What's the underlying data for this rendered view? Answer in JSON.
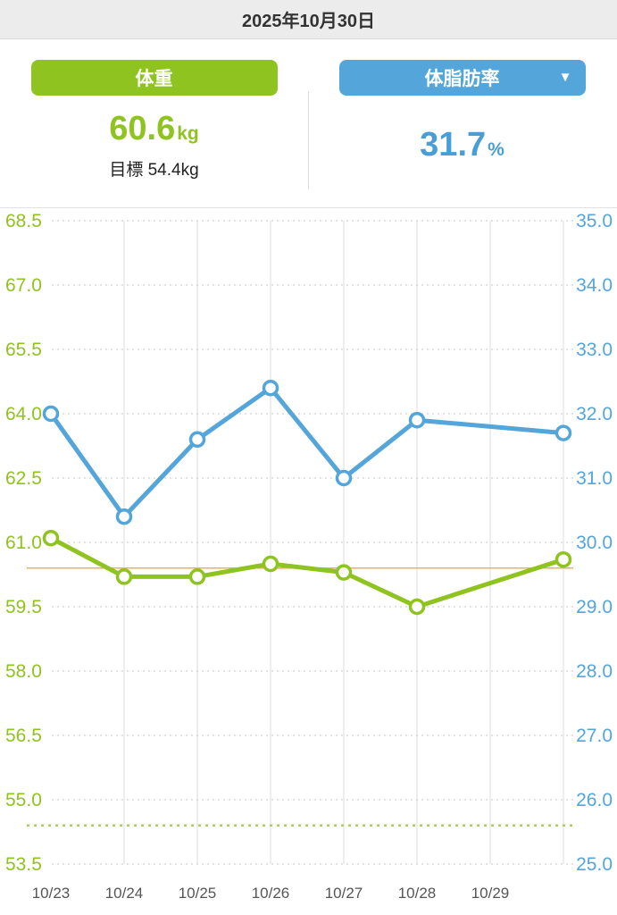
{
  "header": {
    "date": "2025年10月30日"
  },
  "metrics": {
    "weight": {
      "label": "体重",
      "value": "60.6",
      "unit": "kg",
      "goal_label": "目標 54.4kg"
    },
    "body_fat": {
      "label": "体脂肪率",
      "value": "31.7",
      "unit": "%"
    }
  },
  "icons": {
    "dropdown": "▼"
  },
  "colors": {
    "green": "#8fc31f",
    "blue": "#54a5d9",
    "orange": "#f5ad56",
    "goal_green": "#a8d15a",
    "grid_h": "#c5c5c5",
    "grid_v": "#dcdcdc",
    "x_label": "#555555"
  },
  "chart_data": {
    "type": "line",
    "x_tick_labels": [
      "10/23",
      "10/24",
      "10/25",
      "10/26",
      "10/27",
      "10/28",
      "10/29"
    ],
    "x_slot_count": 8,
    "left_axis": {
      "name": "weight_kg",
      "min": 53.5,
      "max": 68.5,
      "step": 1.5,
      "ticks": [
        "68.5",
        "67.0",
        "65.5",
        "64.0",
        "62.5",
        "61.0",
        "59.5",
        "58.0",
        "56.5",
        "55.0",
        "53.5"
      ]
    },
    "right_axis": {
      "name": "body_fat_pct",
      "min": 25.0,
      "max": 35.0,
      "step": 1.0,
      "ticks": [
        "35.0",
        "34.0",
        "33.0",
        "32.0",
        "31.0",
        "30.0",
        "29.0",
        "28.0",
        "27.0",
        "26.0",
        "25.0"
      ]
    },
    "series": [
      {
        "name": "weight",
        "axis": "left",
        "color_key": "green",
        "x_index": [
          0,
          1,
          2,
          3,
          4,
          5,
          7
        ],
        "values": [
          61.1,
          60.2,
          60.2,
          60.5,
          60.3,
          59.5,
          60.6
        ]
      },
      {
        "name": "body_fat",
        "axis": "right",
        "color_key": "blue",
        "x_index": [
          0,
          1,
          2,
          3,
          4,
          5,
          7
        ],
        "values": [
          32.0,
          30.4,
          31.6,
          32.4,
          31.0,
          31.9,
          31.7
        ]
      }
    ],
    "reference_lines": [
      {
        "name": "weight-reference-line",
        "axis": "left",
        "value": 60.4,
        "color_key": "orange",
        "style": "solid"
      },
      {
        "name": "weight-goal-line",
        "axis": "left",
        "value": 54.4,
        "color_key": "goal_green",
        "style": "dotted"
      }
    ],
    "legend": "none",
    "grid": "on"
  }
}
